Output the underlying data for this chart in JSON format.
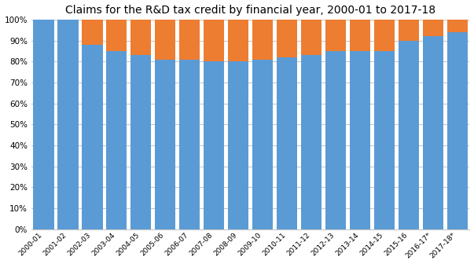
{
  "title": "Claims for the R&D tax credit by financial year, 2000-01 to 2017-18",
  "categories": [
    "2000-01",
    "2001-02",
    "2002-03",
    "2003-04",
    "2004-05",
    "2005-06",
    "2006-07",
    "2007-08",
    "2008-09",
    "2009-10",
    "2010-11",
    "2011-12",
    "2012-13",
    "2013-14",
    "2014-15",
    "2015-16",
    "2016-17*",
    "2017-18*"
  ],
  "blue_values": [
    100,
    100,
    88,
    85,
    83,
    81,
    81,
    80,
    80,
    81,
    82,
    83,
    85,
    85,
    85,
    90,
    92,
    94
  ],
  "orange_values": [
    0,
    0,
    12,
    15,
    17,
    19,
    19,
    20,
    20,
    19,
    18,
    17,
    15,
    15,
    15,
    10,
    8,
    6
  ],
  "blue_color": "#5b9bd5",
  "orange_color": "#ed7d31",
  "ylim": [
    0,
    100
  ],
  "yticks": [
    0,
    10,
    20,
    30,
    40,
    50,
    60,
    70,
    80,
    90,
    100
  ],
  "ytick_labels": [
    "0%",
    "10%",
    "20%",
    "30%",
    "40%",
    "50%",
    "60%",
    "70%",
    "80%",
    "90%",
    "100%"
  ],
  "title_fontsize": 10,
  "bg_color": "#ffffff",
  "grid_color": "#c8c8c8"
}
